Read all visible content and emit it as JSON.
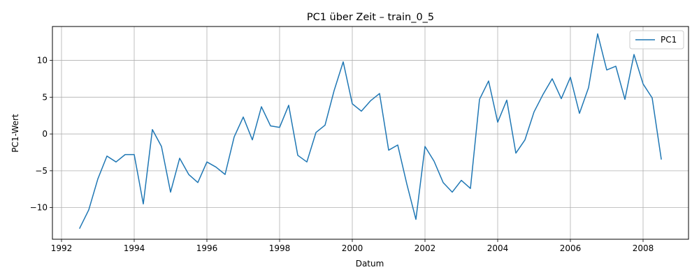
{
  "chart_data": {
    "type": "line",
    "title": "PC1 über Zeit – train_0_5",
    "xlabel": "Datum",
    "ylabel": "PC1-Wert",
    "xlim": [
      1991.75,
      2009.25
    ],
    "ylim": [
      -14.3,
      14.6
    ],
    "x_ticks": [
      1992,
      1994,
      1996,
      1998,
      2000,
      2002,
      2004,
      2006,
      2008
    ],
    "x_tick_labels": [
      "1992",
      "1994",
      "1996",
      "1998",
      "2000",
      "2002",
      "2004",
      "2006",
      "2008"
    ],
    "y_ticks": [
      -10,
      -5,
      0,
      5,
      10
    ],
    "y_tick_labels": [
      "−10",
      "−5",
      "0",
      "5",
      "10"
    ],
    "grid": true,
    "legend_position": "top-right",
    "series": [
      {
        "name": "PC1",
        "color": "#1f77b4",
        "x": [
          1992.5,
          1992.75,
          1993.0,
          1993.25,
          1993.5,
          1993.75,
          1994.0,
          1994.25,
          1994.5,
          1994.75,
          1995.0,
          1995.25,
          1995.5,
          1995.75,
          1996.0,
          1996.25,
          1996.5,
          1996.75,
          1997.0,
          1997.25,
          1997.5,
          1997.75,
          1998.0,
          1998.25,
          1998.5,
          1998.75,
          1999.0,
          1999.25,
          1999.5,
          1999.75,
          2000.0,
          2000.25,
          2000.5,
          2000.75,
          2001.0,
          2001.25,
          2001.5,
          2001.75,
          2002.0,
          2002.25,
          2002.5,
          2002.75,
          2003.0,
          2003.25,
          2003.5,
          2003.75,
          2004.0,
          2004.25,
          2004.5,
          2004.75,
          2005.0,
          2005.25,
          2005.5,
          2005.75,
          2006.0,
          2006.25,
          2006.5,
          2006.75,
          2007.0,
          2007.25,
          2007.5,
          2007.75,
          2008.0,
          2008.25,
          2008.5
        ],
        "values": [
          -12.8,
          -10.3,
          -6.1,
          -3.0,
          -3.8,
          -2.8,
          -2.8,
          -9.5,
          0.6,
          -1.7,
          -7.9,
          -3.3,
          -5.5,
          -6.6,
          -3.8,
          -4.5,
          -5.5,
          -0.4,
          2.3,
          -0.8,
          3.7,
          1.1,
          0.9,
          3.9,
          -2.9,
          -3.8,
          0.2,
          1.2,
          5.9,
          9.8,
          4.1,
          3.1,
          4.5,
          5.5,
          -2.2,
          -1.5,
          -6.8,
          -11.6,
          -1.7,
          -3.7,
          -6.6,
          -7.9,
          -6.3,
          -7.4,
          4.7,
          7.2,
          1.6,
          4.6,
          -2.6,
          -0.8,
          3.0,
          5.4,
          7.5,
          4.8,
          7.7,
          2.8,
          6.3,
          13.6,
          8.7,
          9.2,
          4.7,
          10.8,
          6.8,
          4.9,
          -3.4
        ]
      }
    ]
  }
}
